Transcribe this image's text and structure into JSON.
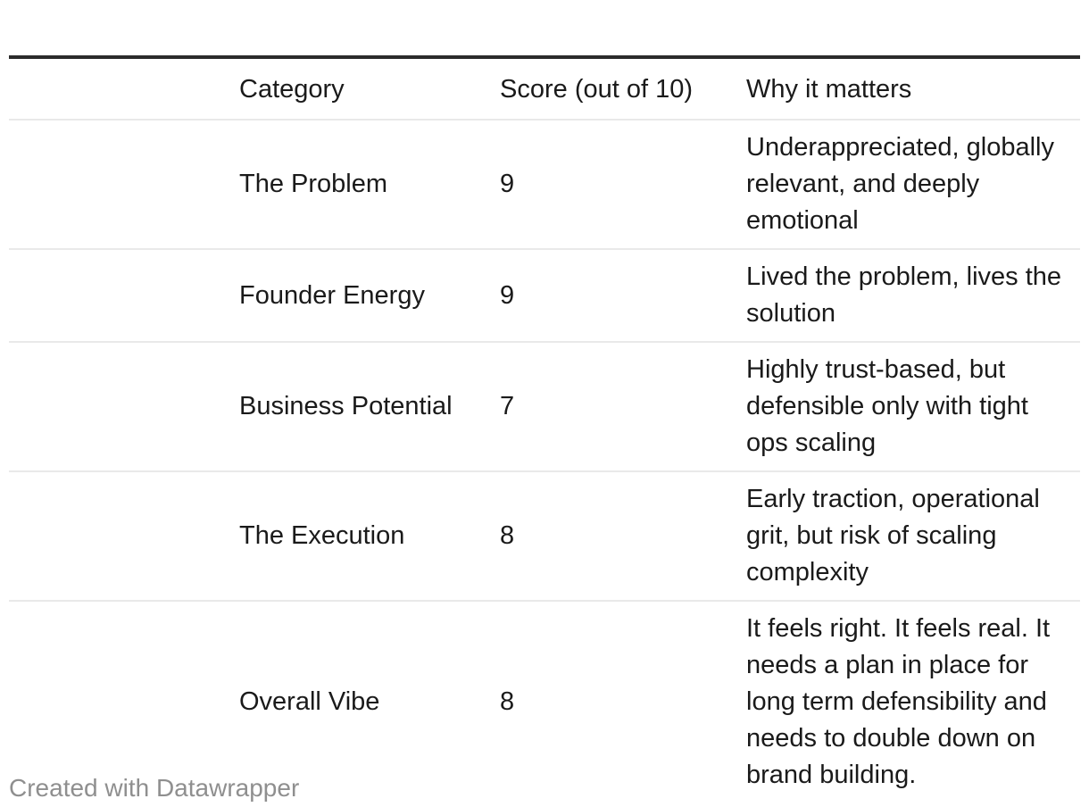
{
  "chart_data": {
    "type": "table",
    "title": "",
    "columns": [
      "",
      "Category",
      "Score (out of 10)",
      "Why it matters"
    ],
    "rows": [
      [
        "",
        "The Problem",
        9,
        "Underappreciated, globally relevant, and deeply emotional"
      ],
      [
        "",
        "Founder Energy",
        9,
        "Lived the problem, lives the solution"
      ],
      [
        "",
        "Business Potential",
        7,
        "Highly trust-based, but defensible only with tight ops scaling"
      ],
      [
        "",
        "The Execution",
        8,
        "Early traction, operational grit, but risk of scaling complexity"
      ],
      [
        "",
        "Overall Vibe",
        8,
        "It feels right. It feels real. It needs a plan in place for long term defensibility and needs to double down on brand building."
      ]
    ],
    "layout": {
      "grid": "horizontal row dividers only",
      "header_top_border": true,
      "first_column_empty": true
    }
  },
  "footer": {
    "credit_label": "Created with Datawrapper"
  },
  "colors": {
    "background": "#ffffff",
    "text": "#1a1a1a",
    "header_top_border": "#2b2b2b",
    "row_divider": "#e9e9e9",
    "footer_text": "#8f8f8f"
  }
}
